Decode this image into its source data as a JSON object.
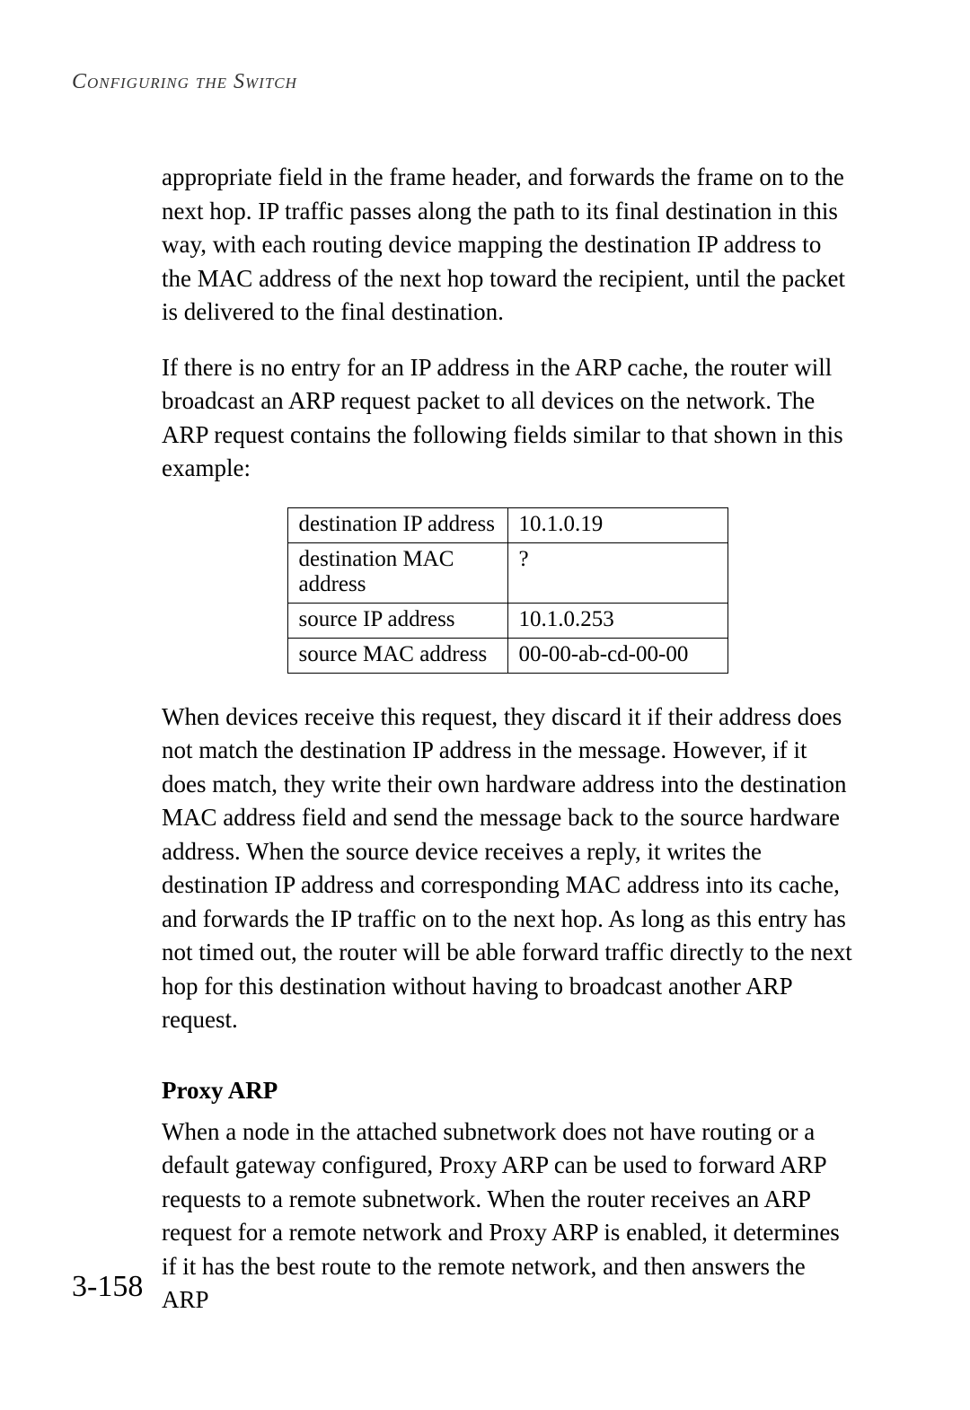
{
  "runningHead": "Configuring the Switch",
  "para1": "appropriate field in the frame header, and forwards the frame on to the next hop. IP traffic passes along the path to its final destination in this way, with each routing device mapping the destination IP address to the MAC address of the next hop toward the recipient, until the packet is delivered to the final destination.",
  "para2": "If there is no entry for an IP address in the ARP cache, the router will broadcast an ARP request packet to all devices on the network. The ARP request contains the following fields similar to that shown in this example:",
  "table": {
    "rows": [
      {
        "label": "destination IP address",
        "value": "10.1.0.19"
      },
      {
        "label": "destination MAC address",
        "value": "?"
      },
      {
        "label": "source IP address",
        "value": "10.1.0.253"
      },
      {
        "label": "source MAC address",
        "value": "00-00-ab-cd-00-00"
      }
    ]
  },
  "para3": "When devices receive this request, they discard it if their address does not match the destination IP address in the message. However, if it does match, they write their own hardware address into the destination MAC address field and send the message back to the source hardware address. When the source device receives a reply, it writes the destination IP address and corresponding MAC address into its cache, and forwards the IP traffic on to the next hop. As long as this entry has not timed out, the router will be able forward traffic directly to the next hop for this destination without having to broadcast another ARP request.",
  "subhead": "Proxy ARP",
  "para4": "When a node in the attached subnetwork does not have routing or a default gateway configured, Proxy ARP can be used to forward ARP requests to a remote subnetwork. When the router receives an ARP request for a remote network and Proxy ARP is enabled, it determines if it has the best route to the remote network, and then answers the ARP",
  "pageNumber": "3-158"
}
